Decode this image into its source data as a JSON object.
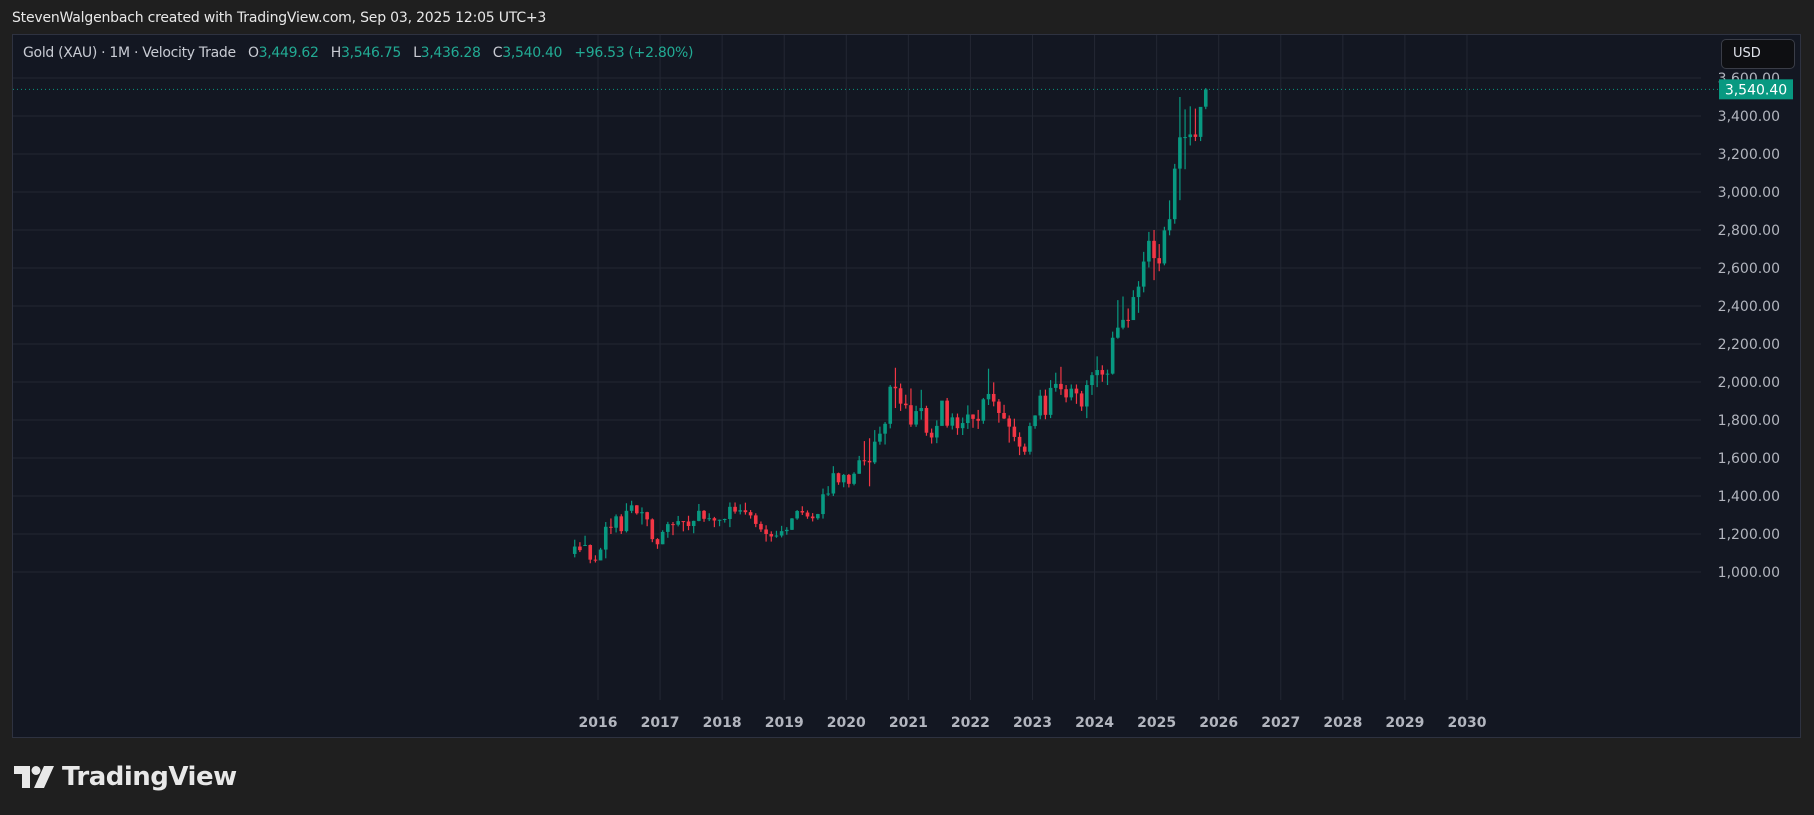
{
  "header": {
    "credit": "StevenWalgenbach created with TradingView.com, Sep 03, 2025 12:05 UTC+3"
  },
  "legend": {
    "symbol": "Gold (XAU) · 1M · Velocity Trade",
    "open_label": "O",
    "open": "3,449.62",
    "high_label": "H",
    "high": "3,546.75",
    "low_label": "L",
    "low": "3,436.28",
    "close_label": "C",
    "close": "3,540.40",
    "change": "+96.53 (+2.80%)"
  },
  "currency_button": "USD",
  "last_price_label": "3,540.40",
  "footer": {
    "logo_text": "TradingView",
    "logo_icon": "tradingview-logo-icon"
  },
  "colors": {
    "background": "#131722",
    "page": "#1f1f1f",
    "grid": "#232733",
    "up": "#089981",
    "down": "#f23645",
    "price_tag": "#089981",
    "axis_text": "#b2b5be"
  },
  "chart_data": {
    "type": "candlestick",
    "title": "Gold (XAU) · 1M · Velocity Trade",
    "xlabel": "",
    "ylabel": "USD",
    "y_ticks": [
      1000,
      1200,
      1400,
      1600,
      1800,
      2000,
      2200,
      2400,
      2600,
      2800,
      3000,
      3200,
      3400,
      3600
    ],
    "y_tick_labels": [
      "1,000.00",
      "1,200.00",
      "1,400.00",
      "1,600.00",
      "1,800.00",
      "2,000.00",
      "2,200.00",
      "2,400.00",
      "2,600.00",
      "2,800.00",
      "3,000.00",
      "3,200.00",
      "3,400.00",
      "3,600.00"
    ],
    "x_ticks": [
      "2016",
      "2017",
      "2018",
      "2019",
      "2020",
      "2021",
      "2022",
      "2023",
      "2024",
      "2025",
      "2026",
      "2027",
      "2028",
      "2029",
      "2030"
    ],
    "ylim": [
      780,
      3680
    ],
    "grid": true,
    "last_price": 3540.4,
    "start": "2015-08",
    "interval": "1M",
    "ohlc": [
      [
        1095,
        1170,
        1077,
        1134
      ],
      [
        1134,
        1157,
        1105,
        1115
      ],
      [
        1142,
        1191,
        1140,
        1142
      ],
      [
        1142,
        1145,
        1046,
        1065
      ],
      [
        1065,
        1088,
        1050,
        1061
      ],
      [
        1061,
        1127,
        1062,
        1118
      ],
      [
        1118,
        1263,
        1072,
        1238
      ],
      [
        1238,
        1282,
        1200,
        1233
      ],
      [
        1233,
        1303,
        1208,
        1293
      ],
      [
        1293,
        1304,
        1200,
        1215
      ],
      [
        1215,
        1362,
        1208,
        1322
      ],
      [
        1322,
        1375,
        1310,
        1351
      ],
      [
        1351,
        1352,
        1302,
        1309
      ],
      [
        1309,
        1340,
        1250,
        1315
      ],
      [
        1315,
        1317,
        1241,
        1277
      ],
      [
        1277,
        1282,
        1157,
        1173
      ],
      [
        1173,
        1178,
        1122,
        1146
      ],
      [
        1146,
        1220,
        1146,
        1211
      ],
      [
        1211,
        1264,
        1180,
        1252
      ],
      [
        1252,
        1263,
        1194,
        1249
      ],
      [
        1249,
        1295,
        1240,
        1268
      ],
      [
        1268,
        1268,
        1214,
        1266
      ],
      [
        1266,
        1296,
        1220,
        1242
      ],
      [
        1242,
        1270,
        1204,
        1269
      ],
      [
        1269,
        1358,
        1267,
        1322
      ],
      [
        1322,
        1326,
        1264,
        1280
      ],
      [
        1280,
        1309,
        1268,
        1283
      ],
      [
        1283,
        1290,
        1236,
        1271
      ],
      [
        1271,
        1276,
        1241,
        1275
      ],
      [
        1275,
        1281,
        1260,
        1279
      ],
      [
        1279,
        1366,
        1236,
        1343
      ],
      [
        1343,
        1366,
        1307,
        1318
      ],
      [
        1318,
        1356,
        1303,
        1325
      ],
      [
        1325,
        1365,
        1302,
        1315
      ],
      [
        1315,
        1326,
        1281,
        1298
      ],
      [
        1298,
        1309,
        1236,
        1253
      ],
      [
        1253,
        1266,
        1211,
        1224
      ],
      [
        1224,
        1246,
        1160,
        1200
      ],
      [
        1200,
        1214,
        1160,
        1187
      ],
      [
        1187,
        1217,
        1180,
        1192
      ],
      [
        1192,
        1243,
        1182,
        1215
      ],
      [
        1215,
        1236,
        1196,
        1222
      ],
      [
        1222,
        1284,
        1221,
        1282
      ],
      [
        1282,
        1326,
        1275,
        1321
      ],
      [
        1321,
        1346,
        1300,
        1313
      ],
      [
        1313,
        1324,
        1280,
        1292
      ],
      [
        1292,
        1310,
        1266,
        1283
      ],
      [
        1283,
        1306,
        1275,
        1305
      ],
      [
        1305,
        1439,
        1281,
        1409
      ],
      [
        1409,
        1452,
        1400,
        1413
      ],
      [
        1413,
        1557,
        1400,
        1520
      ],
      [
        1520,
        1523,
        1459,
        1472
      ],
      [
        1472,
        1516,
        1446,
        1511
      ],
      [
        1511,
        1516,
        1445,
        1464
      ],
      [
        1464,
        1525,
        1456,
        1517
      ],
      [
        1517,
        1611,
        1517,
        1588
      ],
      [
        1588,
        1689,
        1561,
        1585
      ],
      [
        1585,
        1704,
        1451,
        1577
      ],
      [
        1577,
        1747,
        1568,
        1686
      ],
      [
        1686,
        1765,
        1670,
        1728
      ],
      [
        1728,
        1789,
        1671,
        1780
      ],
      [
        1780,
        1984,
        1756,
        1975
      ],
      [
        1975,
        2075,
        1863,
        1967
      ],
      [
        1967,
        1992,
        1848,
        1886
      ],
      [
        1886,
        1933,
        1860,
        1878
      ],
      [
        1878,
        1966,
        1764,
        1776
      ],
      [
        1776,
        1875,
        1764,
        1847
      ],
      [
        1847,
        1959,
        1802,
        1863
      ],
      [
        1863,
        1875,
        1717,
        1733
      ],
      [
        1733,
        1755,
        1676,
        1708
      ],
      [
        1708,
        1798,
        1678,
        1769
      ],
      [
        1769,
        1845,
        1770,
        1902
      ],
      [
        1902,
        1916,
        1760,
        1770
      ],
      [
        1770,
        1835,
        1750,
        1814
      ],
      [
        1814,
        1834,
        1722,
        1757
      ],
      [
        1757,
        1813,
        1721,
        1784
      ],
      [
        1784,
        1877,
        1753,
        1829
      ],
      [
        1829,
        1830,
        1759,
        1806
      ],
      [
        1806,
        1853,
        1753,
        1796
      ],
      [
        1796,
        1916,
        1780,
        1909
      ],
      [
        1909,
        2070,
        1879,
        1937
      ],
      [
        1937,
        1998,
        1872,
        1897
      ],
      [
        1897,
        1910,
        1786,
        1837
      ],
      [
        1837,
        1880,
        1805,
        1808
      ],
      [
        1808,
        1824,
        1681,
        1765
      ],
      [
        1765,
        1807,
        1688,
        1711
      ],
      [
        1711,
        1735,
        1615,
        1660
      ],
      [
        1660,
        1676,
        1617,
        1633
      ],
      [
        1633,
        1786,
        1618,
        1768
      ],
      [
        1768,
        1825,
        1754,
        1824
      ],
      [
        1824,
        1959,
        1804,
        1928
      ],
      [
        1928,
        1960,
        1804,
        1827
      ],
      [
        1827,
        2010,
        1810,
        1969
      ],
      [
        1969,
        2049,
        1949,
        1990
      ],
      [
        1990,
        2080,
        1932,
        1962
      ],
      [
        1962,
        1984,
        1893,
        1919
      ],
      [
        1919,
        1987,
        1903,
        1965
      ],
      [
        1965,
        1987,
        1885,
        1940
      ],
      [
        1940,
        1953,
        1848,
        1871
      ],
      [
        1871,
        2009,
        1810,
        1984
      ],
      [
        1984,
        2052,
        1932,
        2036
      ],
      [
        2036,
        2135,
        1973,
        2063
      ],
      [
        2063,
        2088,
        2001,
        2039
      ],
      [
        2039,
        2065,
        1984,
        2044
      ],
      [
        2044,
        2265,
        2039,
        2233
      ],
      [
        2233,
        2431,
        2228,
        2286
      ],
      [
        2286,
        2450,
        2277,
        2327
      ],
      [
        2327,
        2387,
        2286,
        2326
      ],
      [
        2326,
        2483,
        2353,
        2447
      ],
      [
        2447,
        2531,
        2364,
        2502
      ],
      [
        2502,
        2685,
        2472,
        2634
      ],
      [
        2634,
        2790,
        2603,
        2743
      ],
      [
        2743,
        2800,
        2536,
        2652
      ],
      [
        2652,
        2726,
        2583,
        2624
      ],
      [
        2624,
        2817,
        2614,
        2798
      ],
      [
        2798,
        2956,
        2772,
        2857
      ],
      [
        2857,
        3148,
        2833,
        3123
      ],
      [
        3123,
        3500,
        2957,
        3288
      ],
      [
        3288,
        3435,
        3120,
        3289
      ],
      [
        3289,
        3451,
        3245,
        3303
      ],
      [
        3303,
        3439,
        3268,
        3290
      ],
      [
        3290,
        3409,
        3268,
        3448
      ],
      [
        3449,
        3547,
        3436,
        3540
      ]
    ]
  }
}
